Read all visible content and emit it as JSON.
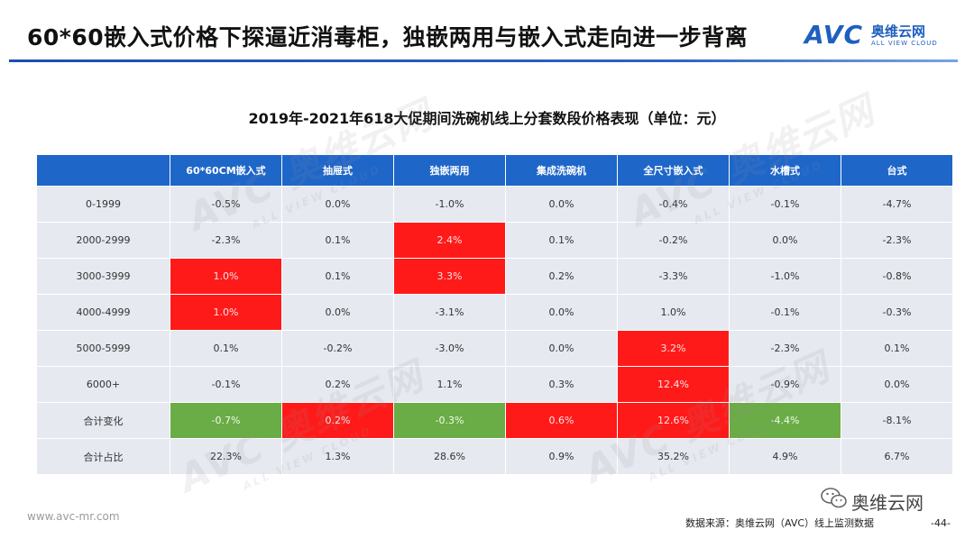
{
  "header": {
    "title": "60*60嵌入式价格下探逼近消毒柜，独嵌两用与嵌入式走向进一步背离",
    "logo_mark": "AVC",
    "logo_cn": "奥维云网",
    "logo_en": "ALL VIEW CLOUD"
  },
  "table": {
    "caption": "2019年-2021年618大促期间洗碗机线上分套数段价格表现（单位：元）",
    "columns": [
      "",
      "60*60CM嵌入式",
      "抽屉式",
      "独嵌两用",
      "集成洗碗机",
      "全尺寸嵌入式",
      "水槽式",
      "台式"
    ],
    "rows": [
      {
        "label": "0-1999",
        "cells": [
          {
            "v": "-0.5%",
            "h": ""
          },
          {
            "v": "0.0%",
            "h": ""
          },
          {
            "v": "-1.0%",
            "h": ""
          },
          {
            "v": "0.0%",
            "h": ""
          },
          {
            "v": "-0.4%",
            "h": ""
          },
          {
            "v": "-0.1%",
            "h": ""
          },
          {
            "v": "-4.7%",
            "h": ""
          }
        ]
      },
      {
        "label": "2000-2999",
        "cells": [
          {
            "v": "-2.3%",
            "h": ""
          },
          {
            "v": "0.1%",
            "h": ""
          },
          {
            "v": "2.4%",
            "h": "red"
          },
          {
            "v": "0.1%",
            "h": ""
          },
          {
            "v": "-0.2%",
            "h": ""
          },
          {
            "v": "0.0%",
            "h": ""
          },
          {
            "v": "-2.3%",
            "h": ""
          }
        ]
      },
      {
        "label": "3000-3999",
        "cells": [
          {
            "v": "1.0%",
            "h": "red"
          },
          {
            "v": "0.1%",
            "h": ""
          },
          {
            "v": "3.3%",
            "h": "red"
          },
          {
            "v": "0.2%",
            "h": ""
          },
          {
            "v": "-3.3%",
            "h": ""
          },
          {
            "v": "-1.0%",
            "h": ""
          },
          {
            "v": "-0.8%",
            "h": ""
          }
        ]
      },
      {
        "label": "4000-4999",
        "cells": [
          {
            "v": "1.0%",
            "h": "red"
          },
          {
            "v": "0.0%",
            "h": ""
          },
          {
            "v": "-3.1%",
            "h": ""
          },
          {
            "v": "0.0%",
            "h": ""
          },
          {
            "v": "1.0%",
            "h": ""
          },
          {
            "v": "-0.1%",
            "h": ""
          },
          {
            "v": "-0.3%",
            "h": ""
          }
        ]
      },
      {
        "label": "5000-5999",
        "cells": [
          {
            "v": "0.1%",
            "h": ""
          },
          {
            "v": "-0.2%",
            "h": ""
          },
          {
            "v": "-3.0%",
            "h": ""
          },
          {
            "v": "0.0%",
            "h": ""
          },
          {
            "v": "3.2%",
            "h": "red"
          },
          {
            "v": "-2.3%",
            "h": ""
          },
          {
            "v": "0.1%",
            "h": ""
          }
        ]
      },
      {
        "label": "6000+",
        "cells": [
          {
            "v": "-0.1%",
            "h": ""
          },
          {
            "v": "0.2%",
            "h": ""
          },
          {
            "v": "1.1%",
            "h": ""
          },
          {
            "v": "0.3%",
            "h": ""
          },
          {
            "v": "12.4%",
            "h": "red"
          },
          {
            "v": "-0.9%",
            "h": ""
          },
          {
            "v": "0.0%",
            "h": ""
          }
        ]
      },
      {
        "label": "合计变化",
        "cells": [
          {
            "v": "-0.7%",
            "h": "green"
          },
          {
            "v": "0.2%",
            "h": "red"
          },
          {
            "v": "-0.3%",
            "h": "green"
          },
          {
            "v": "0.6%",
            "h": "red"
          },
          {
            "v": "12.6%",
            "h": "red"
          },
          {
            "v": "-4.4%",
            "h": "green"
          },
          {
            "v": "-8.1%",
            "h": ""
          }
        ]
      },
      {
        "label": "合计占比",
        "cells": [
          {
            "v": "22.3%",
            "h": ""
          },
          {
            "v": "1.3%",
            "h": ""
          },
          {
            "v": "28.6%",
            "h": ""
          },
          {
            "v": "0.9%",
            "h": ""
          },
          {
            "v": "35.2%",
            "h": ""
          },
          {
            "v": "4.9%",
            "h": ""
          },
          {
            "v": "6.7%",
            "h": ""
          }
        ]
      }
    ]
  },
  "footer": {
    "site": "www.avc-mr.com",
    "source": "数据来源：奥维云网（AVC）线上监测数据",
    "page": "-44-",
    "wechat_name": "奥维云网"
  },
  "colors": {
    "header_blue": "#1f66c9",
    "highlight_red": "#ff1a1a",
    "highlight_green": "#6aac46",
    "cell_gray": "#e6e9f0"
  },
  "icons": [
    "wechat-icon"
  ]
}
